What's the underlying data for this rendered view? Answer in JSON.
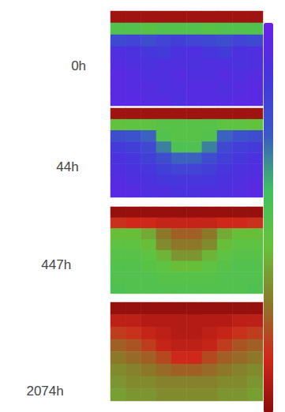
{
  "chart_data": [
    {
      "type": "heatmap",
      "title": "0h",
      "zlim": [
        0,
        10
      ],
      "tick_labels": false,
      "cells": [
        [
          9.6,
          9.6,
          9.6,
          9.6,
          9.6,
          9.6,
          9.6,
          9.6,
          9.6,
          9.6
        ],
        [
          5,
          5,
          5.2,
          5,
          5,
          5,
          5.2,
          5,
          5,
          5
        ],
        [
          2.2,
          2,
          2.4,
          2,
          1.8,
          2,
          2.2,
          2.4,
          2,
          2.2
        ],
        [
          1,
          1.2,
          1.4,
          1.6,
          1.2,
          1,
          1.4,
          1.6,
          1.2,
          1
        ],
        [
          0.8,
          1,
          1.2,
          1,
          1,
          1.2,
          1,
          1,
          1.2,
          1
        ],
        [
          0.6,
          0.8,
          1,
          1,
          0.8,
          1,
          1,
          0.8,
          1,
          0.8
        ],
        [
          0.6,
          0.8,
          0.8,
          1,
          1,
          0.8,
          0.8,
          1,
          0.8,
          0.6
        ],
        [
          0.6,
          0.6,
          0.8,
          0.8,
          1,
          0.8,
          0.8,
          0.8,
          0.6,
          0.6
        ]
      ]
    },
    {
      "type": "heatmap",
      "title": "44h",
      "zlim": [
        0,
        10
      ],
      "tick_labels": false,
      "cells": [
        [
          9.6,
          9.6,
          9.6,
          9.6,
          9.6,
          9.6,
          9.6,
          9.6,
          9.6,
          9.6
        ],
        [
          5.6,
          5.4,
          5.4,
          5.2,
          5.2,
          5.2,
          5.2,
          5.4,
          5.4,
          5.6
        ],
        [
          2.4,
          2.6,
          3,
          5,
          5.2,
          5.2,
          5,
          3,
          2.6,
          2.4
        ],
        [
          1.6,
          1.8,
          2.2,
          3.4,
          4.8,
          4.8,
          3.4,
          2.2,
          1.8,
          1.6
        ],
        [
          1.2,
          1.4,
          1.8,
          2.4,
          3,
          3,
          2.4,
          1.8,
          1.4,
          1.2
        ],
        [
          1,
          1.2,
          1.4,
          1.8,
          2,
          2,
          1.8,
          1.4,
          1.2,
          1
        ],
        [
          0.8,
          1,
          1.2,
          1.4,
          1.4,
          1.4,
          1.4,
          1.2,
          1,
          0.8
        ],
        [
          0.6,
          0.8,
          1,
          1,
          1.2,
          1.2,
          1,
          1,
          0.8,
          0.6
        ]
      ]
    },
    {
      "type": "heatmap",
      "title": "447h",
      "zlim": [
        0,
        10
      ],
      "tick_labels": false,
      "cells": [
        [
          9.8,
          9.8,
          9.8,
          9.8,
          9.8,
          9.8,
          9.8,
          9.8,
          9.8,
          9.8
        ],
        [
          8.4,
          8.6,
          8.6,
          8.8,
          8.8,
          8.8,
          8.8,
          8.6,
          8.6,
          8.4
        ],
        [
          5.8,
          5.8,
          6.2,
          7.2,
          7.6,
          7.6,
          7.2,
          6.2,
          5.8,
          5.8
        ],
        [
          5.4,
          5.4,
          5.8,
          6.8,
          7.2,
          7.2,
          6.8,
          5.8,
          5.4,
          5.4
        ],
        [
          5.2,
          5.2,
          5.4,
          6,
          6.6,
          6.6,
          6,
          5.4,
          5.2,
          5.2
        ],
        [
          5,
          5,
          5.2,
          5.4,
          5.8,
          5.8,
          5.4,
          5.2,
          5,
          5
        ],
        [
          5,
          5,
          5,
          5.2,
          5.2,
          5.2,
          5.2,
          5,
          5,
          5
        ],
        [
          4.8,
          5,
          5,
          5,
          5,
          5,
          5,
          5,
          5,
          4.8
        ]
      ]
    },
    {
      "type": "heatmap",
      "title": "2074h",
      "zlim": [
        0,
        10
      ],
      "tick_labels": false,
      "cells": [
        [
          9.8,
          9.8,
          9.8,
          9.8,
          9.8,
          9.8,
          9.8,
          9.8,
          9.8,
          9.8
        ],
        [
          9,
          9,
          9.2,
          9.2,
          9.2,
          9.2,
          9.2,
          9.2,
          9,
          9
        ],
        [
          8.2,
          8.4,
          8.8,
          9,
          9.2,
          9.2,
          9,
          8.8,
          8.4,
          8.2
        ],
        [
          7.6,
          7.8,
          8.2,
          8.8,
          9,
          9,
          8.8,
          8.2,
          7.8,
          7.6
        ],
        [
          7.2,
          7.4,
          7.6,
          8,
          8.6,
          8.6,
          8,
          7.6,
          7.4,
          7.2
        ],
        [
          6.8,
          7,
          7.2,
          7.4,
          7.6,
          7.6,
          7.4,
          7.2,
          7,
          6.8
        ],
        [
          6.6,
          6.8,
          6.8,
          7,
          7,
          7,
          7,
          6.8,
          6.8,
          6.6
        ],
        [
          6.4,
          6.6,
          6.6,
          6.8,
          6.8,
          6.8,
          6.8,
          6.6,
          6.6,
          6.4
        ]
      ]
    }
  ]
}
